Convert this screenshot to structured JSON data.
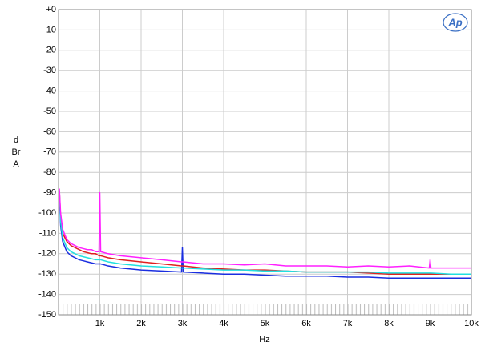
{
  "chart_data": {
    "type": "line",
    "xlabel": "Hz",
    "ylabel": "dBr A",
    "logo": "Ap",
    "x": [
      20,
      50,
      100,
      200,
      300,
      400,
      500,
      600,
      700,
      800,
      900,
      980,
      1000,
      1020,
      1200,
      1500,
      2000,
      2500,
      2980,
      3000,
      3020,
      3500,
      4000,
      4500,
      5000,
      5500,
      6000,
      6500,
      7000,
      7500,
      8000,
      8500,
      8980,
      9000,
      9020,
      9500,
      10000
    ],
    "series": [
      {
        "color": "#1a2ee0",
        "values": [
          -90,
          -106,
          -114,
          -119,
          -121,
          -122,
          -123,
          -123.5,
          -124,
          -124.5,
          -125,
          -125,
          -125,
          -125,
          -126,
          -127,
          -128,
          -128.5,
          -129,
          -117,
          -129,
          -129.5,
          -130,
          -130,
          -130.5,
          -131,
          -131,
          -131,
          -131.5,
          -131.5,
          -132,
          -132,
          -132,
          -132,
          -132,
          -132,
          -132
        ]
      },
      {
        "color": "#e02020",
        "values": [
          -89,
          -102,
          -110,
          -114,
          -116,
          -117,
          -118,
          -119,
          -119.5,
          -120,
          -120,
          -121,
          -121,
          -121,
          -122,
          -123,
          -124,
          -125,
          -126,
          -126,
          -126,
          -127,
          -127.5,
          -128,
          -128,
          -128.5,
          -129,
          -129,
          -129,
          -129.5,
          -130,
          -130,
          -130,
          -130,
          -130,
          -130,
          -130
        ]
      },
      {
        "color": "#20e0e0",
        "values": [
          -89,
          -104,
          -112,
          -117,
          -119,
          -120,
          -121,
          -121.5,
          -122,
          -122.5,
          -123,
          -123,
          -123,
          -123,
          -124,
          -125,
          -126,
          -126.5,
          -127,
          -127,
          -127,
          -127.5,
          -128,
          -128,
          -128.5,
          -128.5,
          -129,
          -129,
          -129,
          -129,
          -129.5,
          -129.5,
          -129.5,
          -129.5,
          -129.5,
          -130,
          -130
        ]
      },
      {
        "color": "#ff20ff",
        "values": [
          -88,
          -100,
          -108,
          -113,
          -115,
          -116,
          -117,
          -117.5,
          -118,
          -118,
          -119,
          -119,
          -90,
          -119,
          -120,
          -121,
          -122,
          -123,
          -124,
          -124,
          -124,
          -125,
          -125,
          -125.5,
          -125,
          -126,
          -126,
          -126,
          -126.5,
          -126,
          -126.5,
          -126,
          -127,
          -123,
          -127,
          -127,
          -127
        ]
      }
    ],
    "xlim": [
      0,
      10000
    ],
    "xticks": [
      {
        "value": 1000,
        "label": "1k"
      },
      {
        "value": 2000,
        "label": "2k"
      },
      {
        "value": 3000,
        "label": "3k"
      },
      {
        "value": 4000,
        "label": "4k"
      },
      {
        "value": 5000,
        "label": "5k"
      },
      {
        "value": 6000,
        "label": "6k"
      },
      {
        "value": 7000,
        "label": "7k"
      },
      {
        "value": 8000,
        "label": "8k"
      },
      {
        "value": 9000,
        "label": "9k"
      },
      {
        "value": 10000,
        "label": "10k"
      }
    ],
    "ylim": [
      -150,
      0
    ],
    "yticks": [
      {
        "value": 0,
        "label": "+0"
      },
      -10,
      -20,
      -30,
      -40,
      -50,
      -60,
      -70,
      -80,
      -90,
      -100,
      -110,
      -120,
      -130,
      -140,
      -150
    ],
    "grid": true
  }
}
